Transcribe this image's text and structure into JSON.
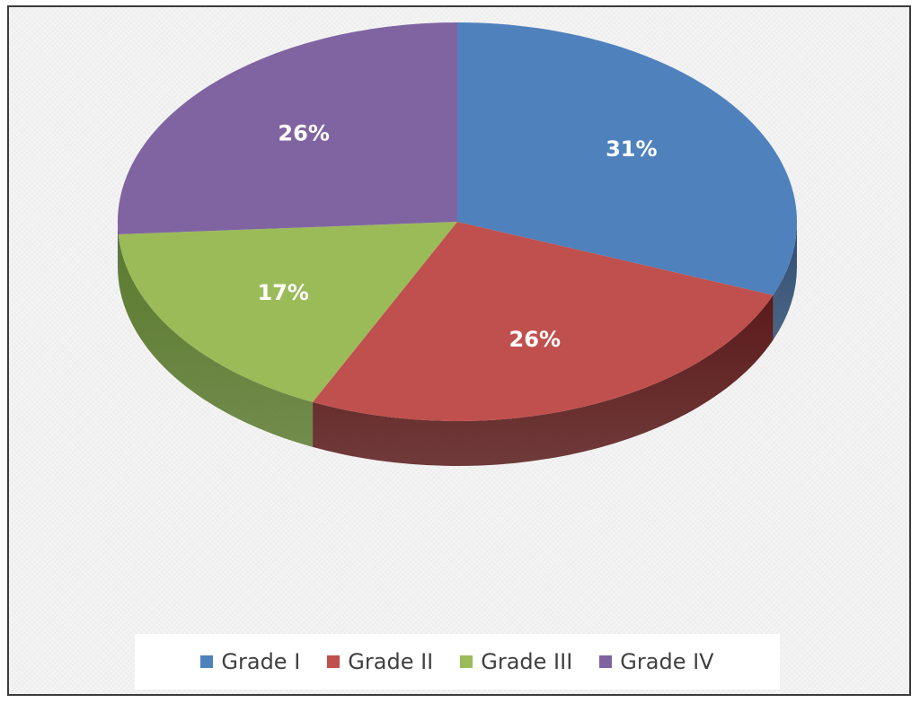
{
  "chart_data": {
    "type": "pie",
    "style": "3d",
    "categories": [
      "Grade I",
      "Grade II",
      "Grade III",
      "Grade IV"
    ],
    "values": [
      31,
      26,
      17,
      26
    ],
    "data_labels": [
      "31%",
      "26%",
      "17%",
      "26%"
    ],
    "colors": [
      "#4f81bd",
      "#c0504d",
      "#9bbb59",
      "#8064a2"
    ],
    "side_colors": [
      "#2f4d72",
      "#5a1a1a",
      "#5b7a2f",
      "#4a3866"
    ],
    "legend_position": "bottom",
    "title": ""
  }
}
